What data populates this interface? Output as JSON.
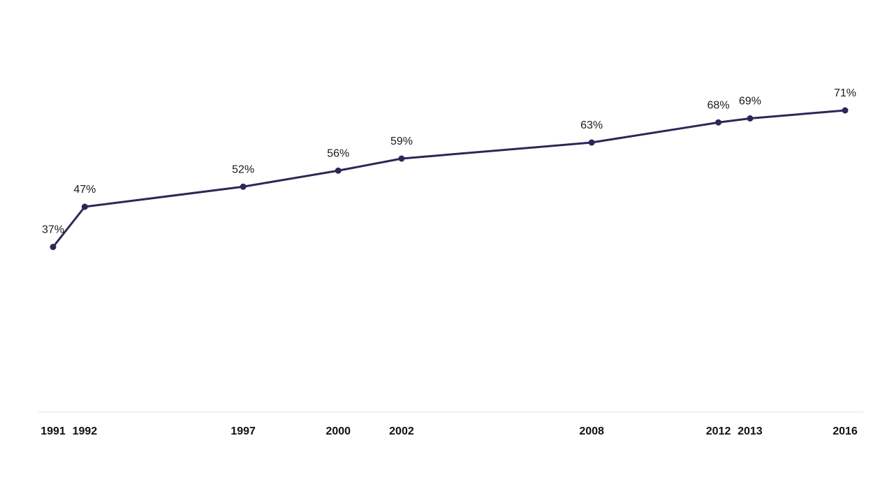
{
  "chart_data": {
    "type": "line",
    "title": "",
    "xlabel": "",
    "ylabel": "",
    "x": [
      "1991",
      "1992",
      "1997",
      "2000",
      "2002",
      "2008",
      "2012",
      "2013",
      "2016"
    ],
    "series": [
      {
        "values": [
          37,
          47,
          52,
          56,
          59,
          63,
          68,
          69,
          71
        ],
        "labels": [
          "37%",
          "47%",
          "52%",
          "56%",
          "59%",
          "63%",
          "68%",
          "69%",
          "71%"
        ],
        "color": "#2e2657"
      }
    ],
    "xlim": [
      1991,
      2016
    ],
    "ylim": [
      0,
      100
    ],
    "grid": false,
    "legend": "none"
  }
}
